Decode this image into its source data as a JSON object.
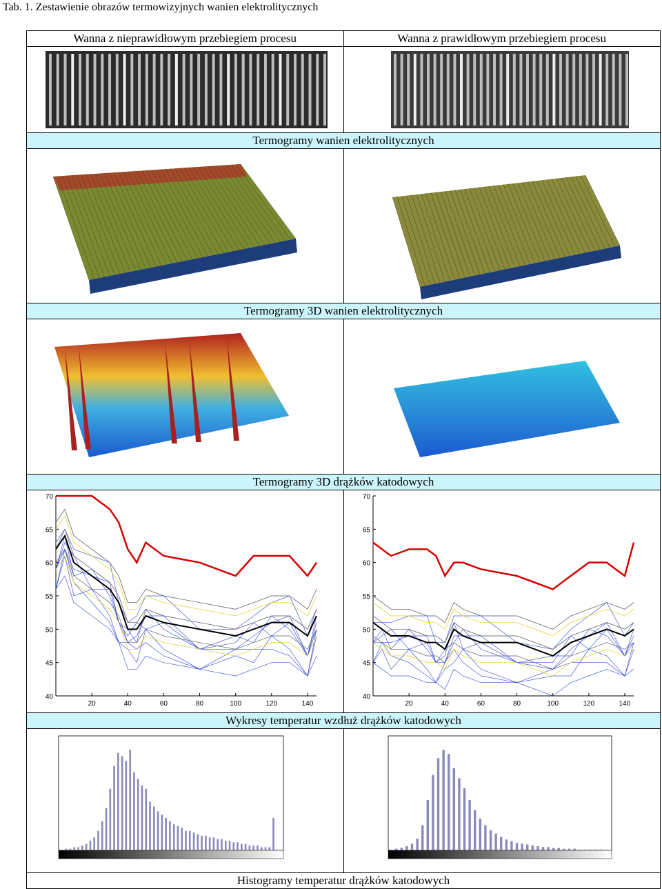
{
  "caption": "Tab. 1. Zestawienie obrazów termowizyjnych wanien elektrolitycznych",
  "columns": {
    "left": "Wanna z nieprawidłowym przebiegiem procesu",
    "right": "Wanna z prawidłowym przebiegiem procesu"
  },
  "bands": {
    "thermograms": "Termogramy wanien elektrolitycznych",
    "thermograms_3d": "Termogramy 3D wanien elektrolitycznych",
    "thermograms_3d_rods": "Termogramy 3D drążków katodowych",
    "temperature_plots": "Wykresy temperatur wzdłuż drążków katodowych",
    "histograms": "Histogramy temperatur drążków katodowych"
  },
  "chart_data": [
    {
      "type": "line",
      "panel": "left",
      "ylim": [
        40,
        70
      ],
      "xlim": [
        0,
        145
      ],
      "yticks": [
        "40",
        "45",
        "50",
        "55",
        "60",
        "65",
        "70"
      ],
      "xticks": [
        "20",
        "40",
        "60",
        "80",
        "100",
        "120",
        "140"
      ],
      "series": [
        {
          "color": "#d40000",
          "x": [
            0,
            5,
            10,
            20,
            30,
            35,
            40,
            45,
            50,
            60,
            80,
            100,
            110,
            120,
            130,
            140,
            145
          ],
          "y": [
            70,
            70,
            70,
            70,
            68,
            66,
            62,
            60,
            63,
            61,
            60,
            58,
            61,
            61,
            61,
            58,
            60
          ]
        },
        {
          "color": "#000000",
          "x": [
            0,
            5,
            10,
            20,
            30,
            35,
            40,
            45,
            50,
            60,
            80,
            100,
            110,
            120,
            130,
            140,
            145
          ],
          "y": [
            62,
            64,
            60,
            58,
            56,
            54,
            50,
            50,
            52,
            51,
            50,
            49,
            50,
            51,
            51,
            49,
            52
          ]
        }
      ]
    },
    {
      "type": "line",
      "panel": "right",
      "ylim": [
        40,
        70
      ],
      "xlim": [
        0,
        145
      ],
      "yticks": [
        "40",
        "45",
        "50",
        "55",
        "60",
        "65",
        "70"
      ],
      "xticks": [
        "20",
        "40",
        "60",
        "80",
        "100",
        "120",
        "140"
      ],
      "series": [
        {
          "color": "#d40000",
          "x": [
            0,
            5,
            10,
            20,
            30,
            35,
            40,
            45,
            50,
            60,
            80,
            100,
            110,
            120,
            130,
            140,
            145
          ],
          "y": [
            63,
            62,
            61,
            62,
            62,
            61,
            58,
            60,
            60,
            59,
            58,
            56,
            58,
            60,
            60,
            58,
            63
          ]
        },
        {
          "color": "#000000",
          "x": [
            0,
            5,
            10,
            20,
            30,
            35,
            40,
            45,
            50,
            60,
            80,
            100,
            110,
            120,
            130,
            140,
            145
          ],
          "y": [
            51,
            50,
            49,
            49,
            48,
            48,
            47,
            50,
            49,
            48,
            48,
            46,
            48,
            49,
            50,
            49,
            50
          ]
        }
      ]
    },
    {
      "type": "bar",
      "panel": "left",
      "values": [
        1,
        1,
        2,
        2,
        3,
        4,
        6,
        8,
        12,
        18,
        26,
        38,
        52,
        60,
        58,
        55,
        62,
        48,
        44,
        40,
        38,
        30,
        27,
        24,
        22,
        20,
        18,
        16,
        15,
        14,
        12,
        12,
        11,
        10,
        9,
        9,
        8,
        8,
        7,
        7,
        6,
        6,
        5,
        5,
        4,
        4,
        3,
        3,
        3,
        2,
        2,
        2,
        20
      ]
    },
    {
      "type": "bar",
      "panel": "right",
      "values": [
        2,
        3,
        5,
        8,
        14,
        30,
        60,
        90,
        110,
        120,
        115,
        98,
        86,
        74,
        60,
        48,
        38,
        30,
        24,
        20,
        16,
        13,
        11,
        9,
        8,
        7,
        6,
        5,
        4,
        4,
        3,
        3,
        2,
        2,
        2,
        1,
        1,
        1,
        1,
        1
      ]
    }
  ]
}
